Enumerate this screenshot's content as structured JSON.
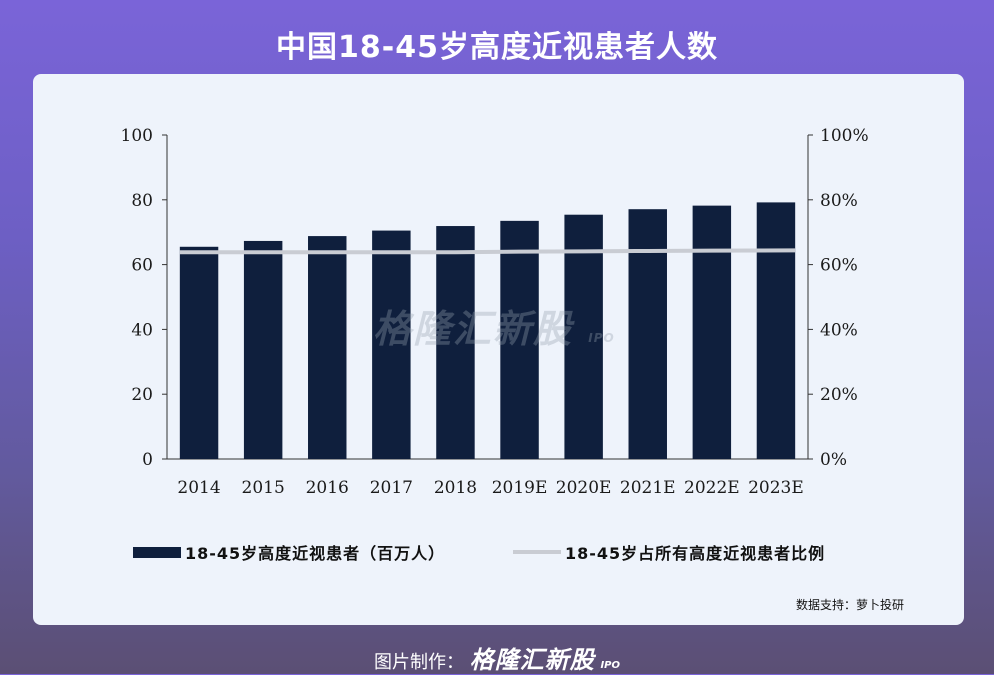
{
  "page": {
    "title": "中国18-45岁高度近视患者人数",
    "source": "数据支持：萝卜投研",
    "watermark": "格隆汇新股",
    "watermark_ipo": "IPO",
    "footer_prefix": "图片制作：",
    "footer_brand": "格隆汇新股",
    "footer_ipo": "IPO"
  },
  "colors": {
    "bar": "#0f1f3d",
    "line": "#c9ccd3"
  },
  "chart_data": {
    "type": "bar",
    "categories": [
      "2014",
      "2015",
      "2016",
      "2017",
      "2018",
      "2019E",
      "2020E",
      "2021E",
      "2022E",
      "2023E"
    ],
    "series": [
      {
        "name": "18-45岁高度近视患者（百万人）",
        "type": "bar",
        "axis": "left",
        "values": [
          65.5,
          67.3,
          68.8,
          70.5,
          71.9,
          73.5,
          75.4,
          77.1,
          78.2,
          79.2
        ]
      },
      {
        "name": "18-45岁占所有高度近视患者比例",
        "type": "line",
        "axis": "right",
        "values": [
          63.8,
          63.8,
          63.8,
          63.8,
          63.8,
          64.0,
          64.1,
          64.2,
          64.3,
          64.4
        ]
      }
    ],
    "y_left": {
      "min": 0,
      "max": 100,
      "ticks": [
        "0",
        "20",
        "40",
        "60",
        "80",
        "100"
      ]
    },
    "y_right": {
      "min": 0,
      "max": 100,
      "ticks": [
        "0%",
        "20%",
        "40%",
        "60%",
        "80%",
        "100%"
      ]
    },
    "grid": false,
    "legend_position": "bottom"
  }
}
